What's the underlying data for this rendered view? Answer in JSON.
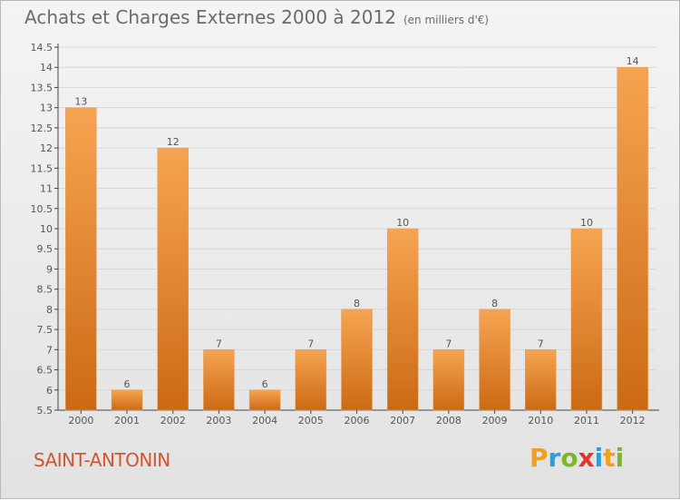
{
  "header": {
    "title": "Achats et Charges Externes 2000 à 2012",
    "subtitle": "(en milliers d'€)"
  },
  "footer": {
    "commune": "SAINT-ANTONIN",
    "logo": {
      "letters": [
        "P",
        "r",
        "o",
        "x",
        "i",
        "t",
        "i"
      ],
      "colors": [
        "#f0a020",
        "#2aa0d8",
        "#7ab828",
        "#e8322a",
        "#2aa0d8",
        "#f0a020",
        "#7ab828"
      ]
    }
  },
  "colors": {
    "bar_top": "#f6a452",
    "bar_bottom": "#cc6a14",
    "axis": "#444444",
    "grid": "#d8d8d8"
  },
  "chart_data": {
    "type": "bar",
    "title": "Achats et Charges Externes 2000 à 2012",
    "subtitle": "(en milliers d'€)",
    "categories": [
      "2000",
      "2001",
      "2002",
      "2003",
      "2004",
      "2005",
      "2006",
      "2007",
      "2008",
      "2009",
      "2010",
      "2011",
      "2012"
    ],
    "values": [
      13,
      6,
      12,
      7,
      6,
      7,
      8,
      10,
      7,
      8,
      7,
      10,
      14
    ],
    "ylim": [
      5.5,
      14.5
    ],
    "yticks": [
      "5.5",
      "6",
      "6.5",
      "7",
      "7.5",
      "8",
      "8.5",
      "9",
      "9.5",
      "10",
      "10.5",
      "11",
      "11.5",
      "12",
      "12.5",
      "13",
      "13.5",
      "14",
      "14.5"
    ],
    "grid": true,
    "legend": "none"
  }
}
